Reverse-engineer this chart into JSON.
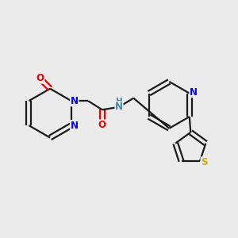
{
  "background_color": "#ebebeb",
  "bond_color": "#1a1a1a",
  "atom_colors": {
    "N": "#0000ee",
    "O": "#ee0000",
    "S": "#ccaa00",
    "NH": "#4488aa",
    "C": "#1a1a1a"
  },
  "figsize": [
    3.0,
    3.0
  ],
  "dpi": 100
}
